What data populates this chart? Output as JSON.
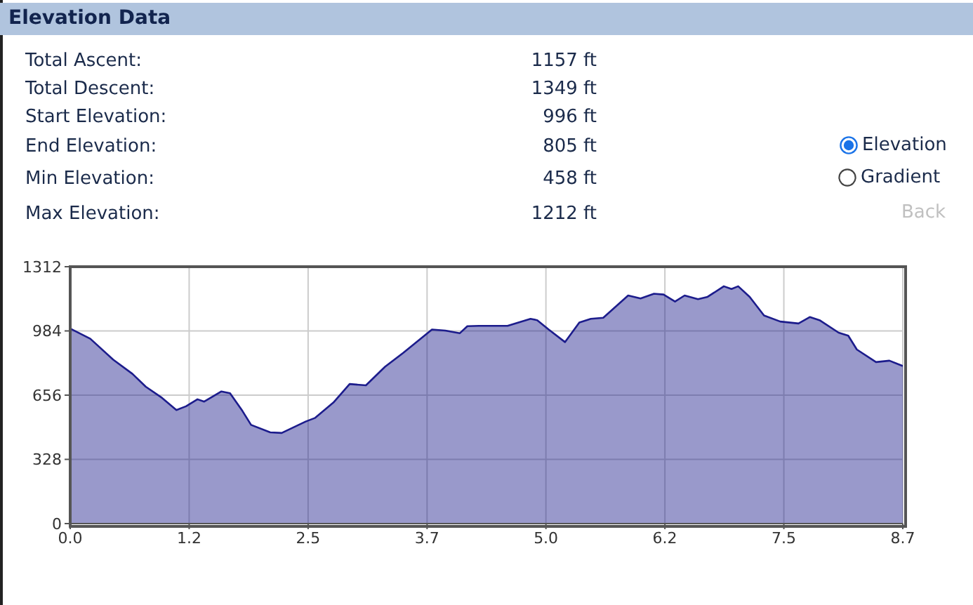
{
  "chart_data": {
    "type": "area",
    "title": "Elevation Data",
    "annotations": [
      "Total Ascent:",
      "1157 ft",
      "Total Descent:",
      "1349 ft",
      "Start Elevation:",
      "996 ft",
      "End Elevation:",
      "805 ft",
      "Min Elevation:",
      "458 ft",
      "Max Elevation:",
      "1212 ft",
      "Elevation",
      "Gradient",
      "Back"
    ],
    "x": [
      0,
      0.21,
      0.45,
      0.65,
      0.79,
      0.96,
      1.11,
      1.21,
      1.33,
      1.4,
      1.58,
      1.67,
      1.8,
      1.89,
      2.09,
      2.21,
      2.46,
      2.56,
      2.75,
      2.92,
      3.09,
      3.29,
      3.48,
      3.78,
      3.92,
      4.07,
      4.15,
      4.27,
      4.57,
      4.81,
      4.88,
      5.0,
      5.17,
      5.32,
      5.44,
      5.57,
      5.83,
      5.96,
      6.1,
      6.2,
      6.32,
      6.42,
      6.56,
      6.66,
      6.83,
      6.91,
      6.98,
      7.1,
      7.25,
      7.42,
      7.61,
      7.73,
      7.83,
      8.03,
      8.13,
      8.22,
      8.42,
      8.56,
      8.7
    ],
    "series": [
      {
        "color": "#1c1c8c",
        "values": [
          996,
          944,
          837,
          765,
          699,
          642,
          580,
          599,
          635,
          623,
          675,
          666,
          575,
          504,
          466,
          463,
          521,
          540,
          618,
          713,
          706,
          801,
          872,
          991,
          986,
          972,
          1008,
          1010,
          1010,
          1046,
          1039,
          991,
          927,
          1027,
          1046,
          1051,
          1165,
          1150,
          1174,
          1170,
          1134,
          1165,
          1146,
          1158,
          1212,
          1198,
          1212,
          1158,
          1063,
          1032,
          1022,
          1055,
          1039,
          975,
          960,
          889,
          825,
          832,
          805
        ]
      }
    ],
    "xlim": [
      0,
      8.7
    ],
    "xticks": [
      {
        "value": 0,
        "label": "0.0"
      },
      {
        "value": 1.243,
        "label": "1.2"
      },
      {
        "value": 2.486,
        "label": "2.5"
      },
      {
        "value": 3.729,
        "label": "3.7"
      },
      {
        "value": 4.971,
        "label": "5.0"
      },
      {
        "value": 6.214,
        "label": "6.2"
      },
      {
        "value": 7.457,
        "label": "7.5"
      },
      {
        "value": 8.7,
        "label": "8.7"
      }
    ],
    "ylim": [
      0,
      1312
    ],
    "yticks": [
      0,
      328,
      656,
      984,
      1312
    ],
    "grid": true,
    "legend": false,
    "marker": "none",
    "line_style": "solid"
  }
}
